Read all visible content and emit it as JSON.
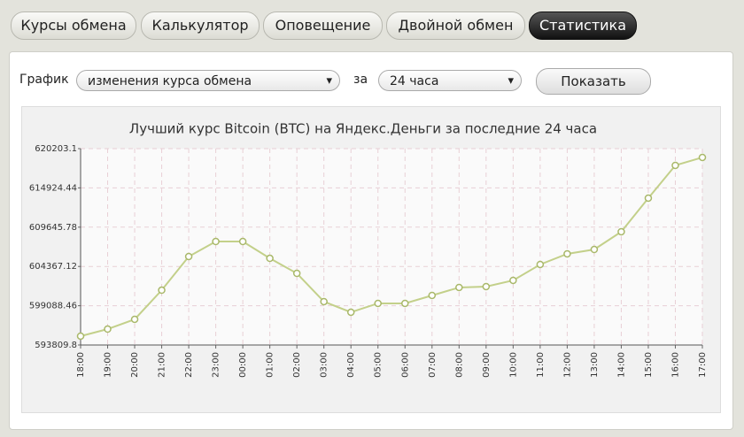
{
  "tabs": [
    "Курсы обмена",
    "Калькулятор",
    "Оповещение",
    "Двойной обмен",
    "Статистика"
  ],
  "form": {
    "label": "График",
    "select1": "изменения курса обмена",
    "for": "за",
    "select2": "24 часа",
    "button": "Показать"
  },
  "chart_data": {
    "type": "line",
    "title": "Лучший курс Bitcoin (BTC) на Яндекс.Деньги за последние 24 часа",
    "categories": [
      "18:00",
      "19:00",
      "20:00",
      "21:00",
      "22:00",
      "23:00",
      "00:00",
      "01:00",
      "02:00",
      "03:00",
      "04:00",
      "05:00",
      "06:00",
      "07:00",
      "08:00",
      "09:00",
      "10:00",
      "11:00",
      "12:00",
      "13:00",
      "14:00",
      "15:00",
      "16:00",
      "17:00"
    ],
    "values": [
      595000,
      595950,
      597260,
      601180,
      605700,
      607720,
      607720,
      605460,
      603440,
      599640,
      598210,
      599400,
      599400,
      600470,
      601540,
      601660,
      602490,
      604630,
      606060,
      606650,
      609030,
      613550,
      617950,
      619020
    ],
    "color": "#c3d08a",
    "ylim": [
      593809.8,
      620203.1
    ],
    "yticks": [
      593809.8,
      599088.46,
      604367.12,
      609645.78,
      614924.44,
      620203.1
    ],
    "grid": true
  }
}
